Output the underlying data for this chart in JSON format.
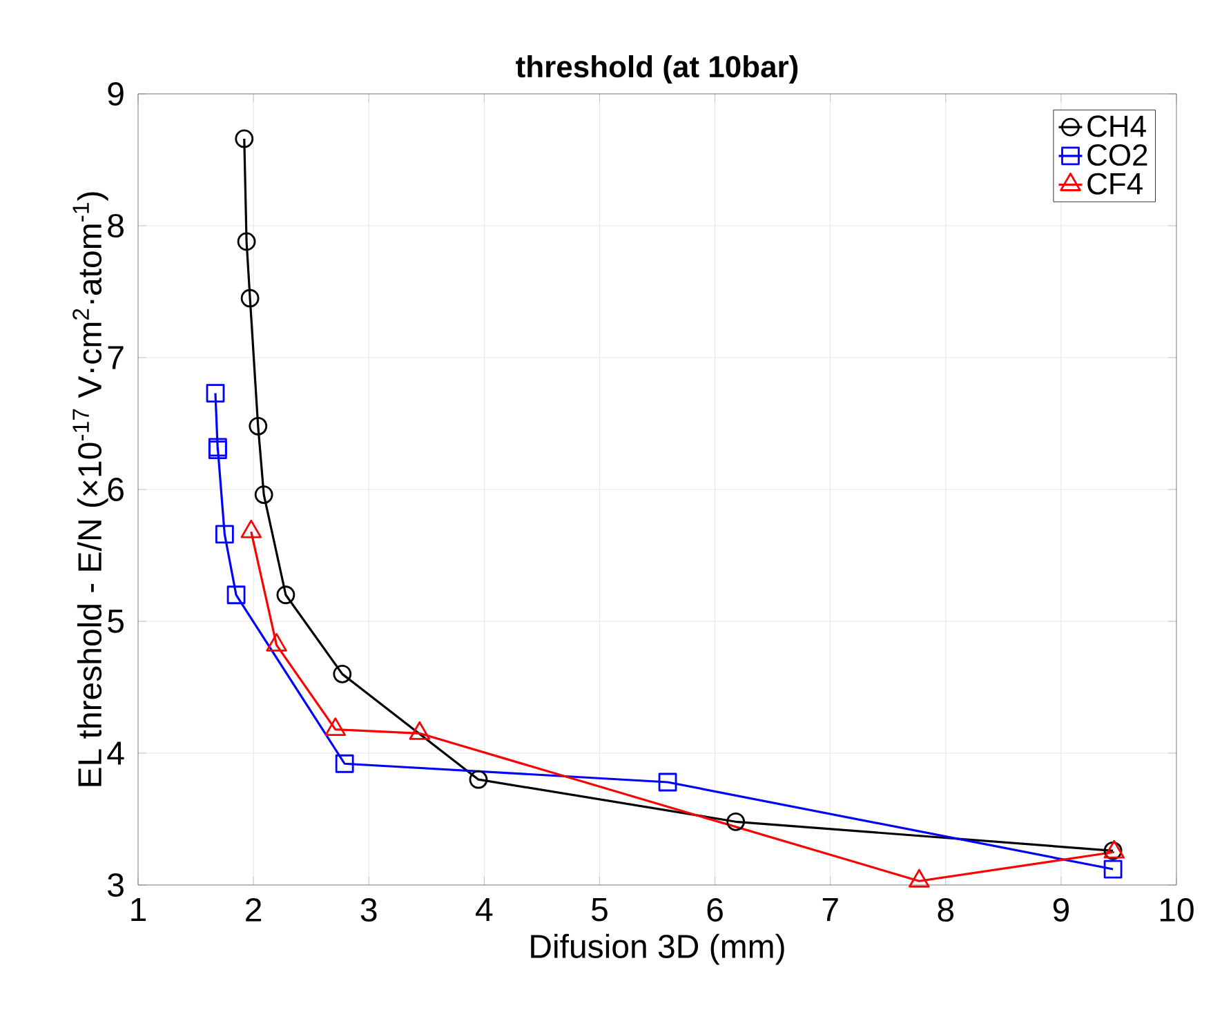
{
  "chart_data": {
    "type": "line",
    "title": "**threshold (at 10bar)**",
    "xlabel": "Difusion 3D (mm)",
    "ylabel": "EL threshold - E/N (×10$^{-17}$ V·cm$^{2}$·atom$^{-1}$)",
    "series": [
      {
        "name": "CH4",
        "color": "#000000",
        "marker": "circle",
        "x": [
          1.92,
          1.94,
          1.97,
          2.04,
          2.09,
          2.28,
          2.77,
          3.95,
          6.18,
          9.45
        ],
        "values": [
          8.66,
          7.88,
          7.45,
          6.48,
          5.96,
          5.2,
          4.6,
          3.8,
          3.48,
          3.26
        ]
      },
      {
        "name": "CO2",
        "color": "#0000ff",
        "marker": "square",
        "x": [
          1.67,
          1.69,
          1.69,
          1.75,
          1.85,
          2.79,
          5.59,
          9.45
        ],
        "values": [
          6.73,
          6.3,
          6.32,
          5.66,
          5.2,
          3.92,
          3.78,
          3.12
        ]
      },
      {
        "name": "CF4",
        "color": "#ff0000",
        "marker": "triangle",
        "x": [
          1.98,
          2.2,
          2.71,
          3.44,
          7.77,
          9.46
        ],
        "values": [
          5.68,
          4.82,
          4.18,
          4.15,
          3.03,
          3.25
        ]
      }
    ],
    "xlim": [
      1,
      10
    ],
    "ylim": [
      3,
      9
    ],
    "xticks": [
      1,
      2,
      3,
      4,
      5,
      6,
      7,
      8,
      9,
      10
    ],
    "yticks": [
      3,
      4,
      5,
      6,
      7,
      8,
      9
    ],
    "grid": true,
    "legend": "top right",
    "line_style": "solid"
  }
}
